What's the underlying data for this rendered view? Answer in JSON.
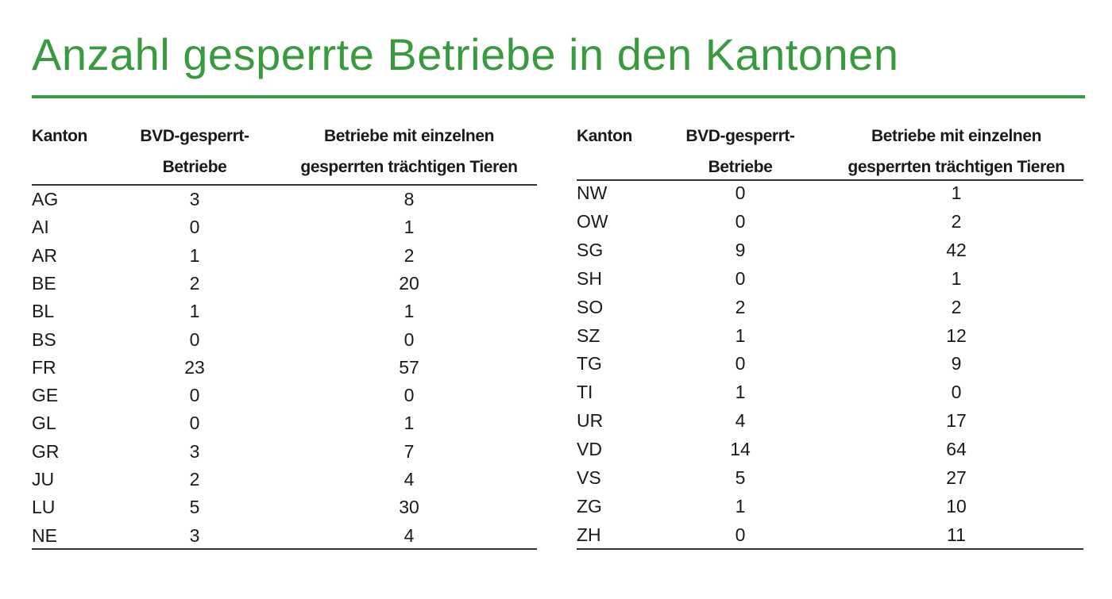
{
  "title": "Anzahl gesperrte Betriebe in den Kantonen",
  "tables": [
    {
      "headers": [
        "Kanton",
        "BVD-gesperrt-\nBetriebe",
        "Betriebe mit einzelnen\ngesperrten trächtigen Tieren"
      ],
      "rows": [
        [
          "AG",
          3,
          8
        ],
        [
          "AI",
          0,
          1
        ],
        [
          "AR",
          1,
          2
        ],
        [
          "BE",
          2,
          20
        ],
        [
          "BL",
          1,
          1
        ],
        [
          "BS",
          0,
          0
        ],
        [
          "FR",
          23,
          57
        ],
        [
          "GE",
          0,
          0
        ],
        [
          "GL",
          0,
          1
        ],
        [
          "GR",
          3,
          7
        ],
        [
          "JU",
          2,
          4
        ],
        [
          "LU",
          5,
          30
        ],
        [
          "NE",
          3,
          4
        ]
      ]
    },
    {
      "headers": [
        "Kanton",
        "BVD-gesperrt-\nBetriebe",
        "Betriebe mit einzelnen\ngesperrten trächtigen Tieren"
      ],
      "rows": [
        [
          "NW",
          0,
          1
        ],
        [
          "OW",
          0,
          2
        ],
        [
          "SG",
          9,
          42
        ],
        [
          "SH",
          0,
          1
        ],
        [
          "SO",
          2,
          2
        ],
        [
          "SZ",
          1,
          12
        ],
        [
          "TG",
          0,
          9
        ],
        [
          "TI",
          1,
          0
        ],
        [
          "UR",
          4,
          17
        ],
        [
          "VD",
          14,
          64
        ],
        [
          "VS",
          5,
          27
        ],
        [
          "ZG",
          1,
          10
        ],
        [
          "ZH",
          0,
          11
        ]
      ]
    }
  ]
}
